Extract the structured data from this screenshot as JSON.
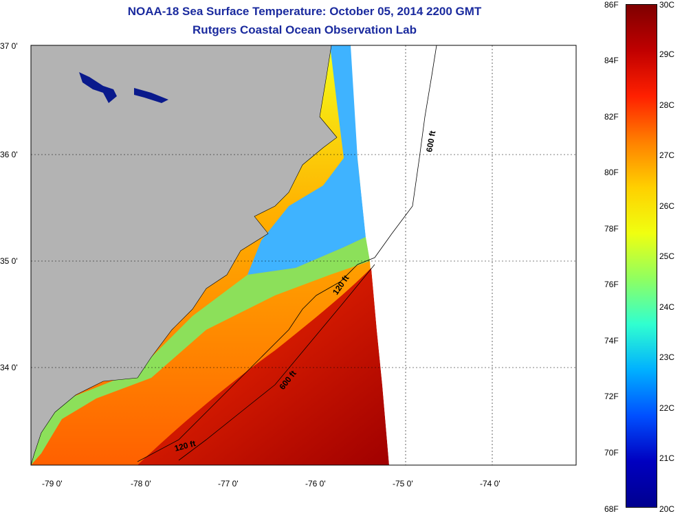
{
  "title": {
    "line1": "NOAA-18 Sea Surface Temperature:  October 05, 2014 2200 GMT",
    "line2": "Rutgers Coastal Ocean Observation Lab"
  },
  "map": {
    "lat_labels": [
      "37 0'",
      "36 0'",
      "35 0'",
      "34 0'"
    ],
    "lon_labels": [
      "-79 0'",
      "-78 0'",
      "-77 0'",
      "-76 0'",
      "-75 0'",
      "-74 0'"
    ],
    "contour_labels": [
      "600 ft",
      "120 ft",
      "600 ft",
      "120 ft"
    ],
    "colors": {
      "land": "#b3b3b3",
      "no_data": "#ffffff",
      "inland_water": "#0a1a8c"
    }
  },
  "colorbar": {
    "fahrenheit": [
      "86F",
      "84F",
      "82F",
      "80F",
      "78F",
      "76F",
      "74F",
      "72F",
      "70F",
      "68F"
    ],
    "celsius": [
      "30C",
      "29C",
      "28C",
      "27C",
      "26C",
      "25C",
      "24C",
      "23C",
      "22C",
      "21C",
      "20C"
    ],
    "gradient": [
      "#7f0000",
      "#c00000",
      "#ff2000",
      "#ff8000",
      "#ffd000",
      "#f0ff10",
      "#90ff60",
      "#30ffd0",
      "#00b0ff",
      "#0050ff",
      "#0000c0",
      "#00008f"
    ]
  }
}
